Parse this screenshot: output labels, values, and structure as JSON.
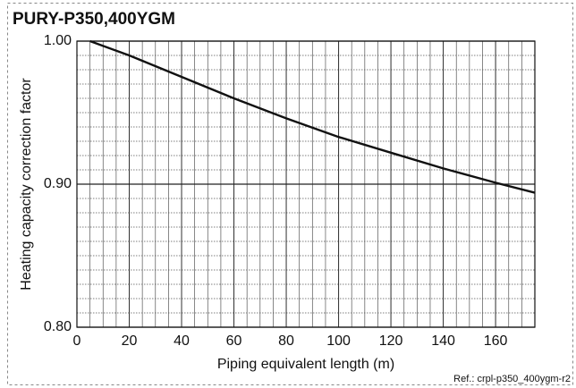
{
  "chart_data": {
    "type": "line",
    "title": "PURY-P350,400YGM",
    "ylabel": "Heating capacity correction factor",
    "xlabel": "Piping equivalent length (m)",
    "ref": "Ref.: crpl-p350_400ygm-r2",
    "x": [
      5,
      20,
      40,
      60,
      80,
      100,
      120,
      140,
      160,
      175
    ],
    "values": [
      1.0,
      0.99,
      0.975,
      0.96,
      0.946,
      0.933,
      0.922,
      0.911,
      0.901,
      0.894
    ],
    "color": "#111111",
    "xlim": [
      0,
      175
    ],
    "xticks": [
      0,
      20,
      40,
      60,
      80,
      100,
      120,
      140,
      160
    ],
    "ylim": [
      0.8,
      1.0
    ],
    "yticks": [
      {
        "value": 1.0,
        "label": "1.00"
      },
      {
        "value": 0.9,
        "label": "0.90"
      },
      {
        "value": 0.8,
        "label": "0.80"
      }
    ],
    "grid": true
  }
}
